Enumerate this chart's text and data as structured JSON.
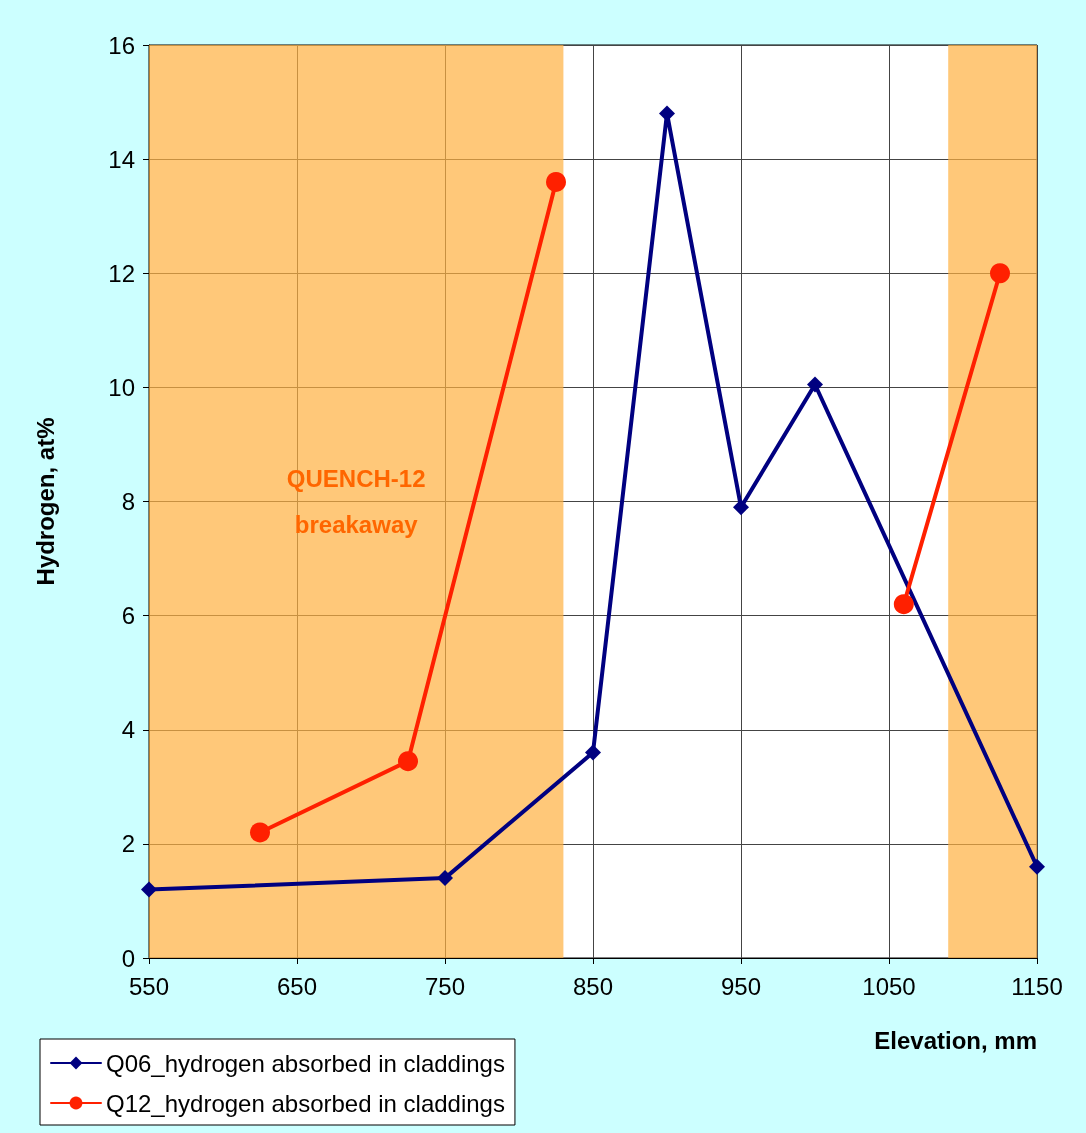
{
  "chart_data": {
    "type": "line",
    "xlabel": "Elevation, mm",
    "ylabel": "Hydrogen, at%",
    "xlim": [
      550,
      1150
    ],
    "xticks": [
      550,
      650,
      750,
      850,
      950,
      1050,
      1150
    ],
    "ylim": [
      0,
      16
    ],
    "yticks": [
      0,
      2,
      4,
      6,
      8,
      10,
      12,
      14,
      16
    ],
    "grid": true,
    "legend": "bottom left",
    "line_style": "solid",
    "series": [
      {
        "name": "Q06_hydrogen absorbed in claddings",
        "color": "#000080",
        "marker": "diamond",
        "x": [
          550,
          750,
          850,
          900,
          950,
          1000,
          1150
        ],
        "values": [
          1.2,
          1.4,
          3.6,
          14.8,
          7.9,
          10.05,
          1.6
        ]
      },
      {
        "name": "Q12_hydrogen absorbed in claddings",
        "color": "#ff2000",
        "marker": "circle",
        "x": [
          625,
          725,
          825,
          950,
          1060,
          1125
        ],
        "values": [
          2.2,
          3.45,
          13.6,
          null,
          6.2,
          12.0
        ]
      }
    ],
    "bands": [
      {
        "axis": "x",
        "from": 547,
        "to": 830,
        "label": "QUENCH-12\nbreakaway",
        "color": "#ffb040"
      },
      {
        "axis": "x",
        "from": 1090,
        "to": 1150,
        "label": null,
        "color": "#ffb040"
      }
    ]
  }
}
